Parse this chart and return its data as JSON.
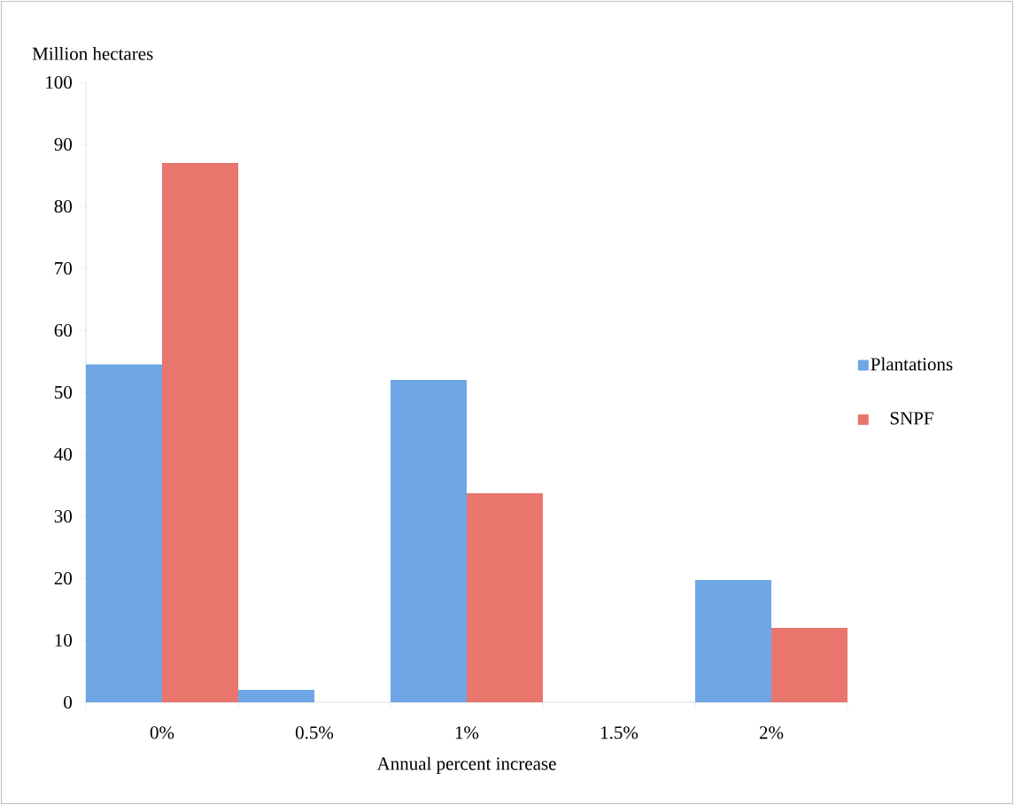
{
  "chart_data": {
    "type": "bar",
    "xlabel": "Annual percent increase",
    "ylabel": "Million hectares",
    "categories": [
      "0%",
      "0.5%",
      "1%",
      "1.5%",
      "2%"
    ],
    "series": [
      {
        "name": "Plantations",
        "color": "#6fa6e6",
        "values": [
          54.5,
          2,
          52,
          0,
          19.7
        ]
      },
      {
        "name": "SNPF",
        "color": "#e8766d",
        "values": [
          87,
          0,
          33.7,
          0,
          12
        ]
      }
    ],
    "ylim": [
      0,
      100
    ],
    "yticks": [
      0,
      10,
      20,
      30,
      40,
      50,
      60,
      70,
      80,
      90,
      100
    ],
    "grid": false,
    "legend": "right"
  }
}
